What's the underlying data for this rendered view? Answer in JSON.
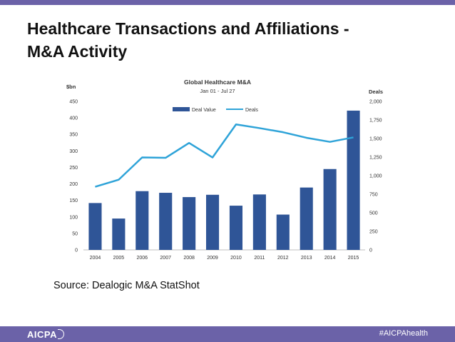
{
  "slide": {
    "title_line1": "Healthcare Transactions and Affiliations -",
    "title_line2": "M&A Activity",
    "source": "Source: Dealogic M&A StatShot",
    "hashtag": "#AICPAhealth",
    "logo_text": "AICPA",
    "logo_icon": "aicpa-logo-arc",
    "accent_color": "#6b62a8",
    "bar_color": "#2f5597",
    "line_color": "#2ea3d8"
  },
  "chart_data": {
    "type": "bar",
    "title": "Global Healthcare M&A",
    "subtitle": "Jan 01 - Jul 27",
    "ylabel_left": "$bn",
    "ylabel_right": "Deals",
    "categories": [
      "2004",
      "2005",
      "2006",
      "2007",
      "2008",
      "2009",
      "2010",
      "2011",
      "2012",
      "2013",
      "2014",
      "2015"
    ],
    "series": [
      {
        "name": "Deal Value",
        "type": "bar",
        "axis": "left",
        "values": [
          142,
          95,
          178,
          173,
          160,
          167,
          134,
          168,
          107,
          189,
          245,
          422
        ]
      },
      {
        "name": "Deals",
        "type": "line",
        "axis": "right",
        "values": [
          850,
          945,
          1245,
          1240,
          1440,
          1245,
          1690,
          1640,
          1585,
          1510,
          1455,
          1515
        ]
      }
    ],
    "ylim_left": [
      0,
      450
    ],
    "ylim_right": [
      0,
      2000
    ],
    "yticks_left": [
      0,
      50,
      100,
      150,
      200,
      250,
      300,
      350,
      400,
      450
    ],
    "yticks_right": [
      "0",
      "250",
      "500",
      "750",
      "1,000",
      "1,250",
      "1,500",
      "1,750",
      "2,000"
    ],
    "legend_position": "top-center",
    "grid": false
  }
}
